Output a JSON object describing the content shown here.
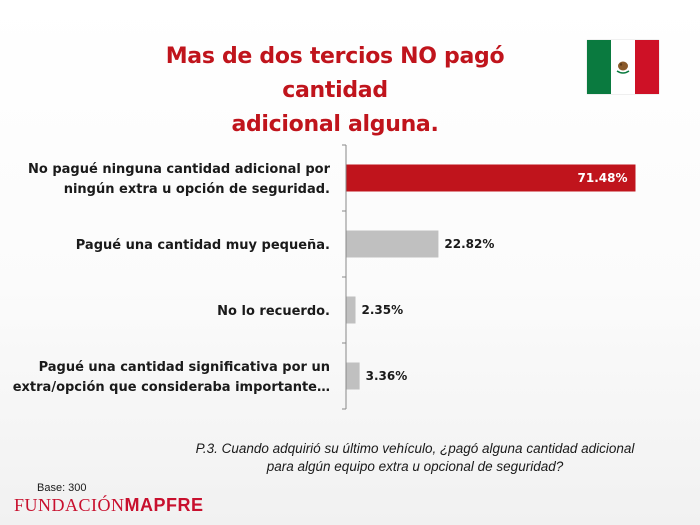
{
  "title": {
    "line1": "Mas de dos tercios NO pagó cantidad",
    "line2": "adicional alguna."
  },
  "flag_icon": "mexico-flag-icon",
  "colors": {
    "highlight": "#c0141c",
    "bar": "#c0c0c0",
    "title": "#c0141c"
  },
  "chart_data": {
    "type": "bar",
    "orientation": "horizontal",
    "categories": [
      [
        "No pagué ninguna cantidad adicional por",
        "ningún extra u opción de seguridad."
      ],
      [
        "Pagué una cantidad muy pequeña."
      ],
      [
        "No lo recuerdo."
      ],
      [
        "Pagué una cantidad significativa por un",
        "extra/opción que consideraba importante…"
      ]
    ],
    "values": [
      71.48,
      22.82,
      2.35,
      3.36
    ],
    "value_labels": [
      "71.48%",
      "22.82%",
      "2.35%",
      "3.36%"
    ],
    "highlight_index": 0,
    "xlim": [
      0,
      100
    ],
    "grid": false,
    "legend": "none"
  },
  "question": "P.3. Cuando adquirió su último vehículo, ¿pagó alguna cantidad adicional para algún equipo extra u opcional de seguridad?",
  "base": "Base: 300",
  "logo": {
    "part1": "FUNDACIÓN",
    "part2": "MAPFRE"
  }
}
